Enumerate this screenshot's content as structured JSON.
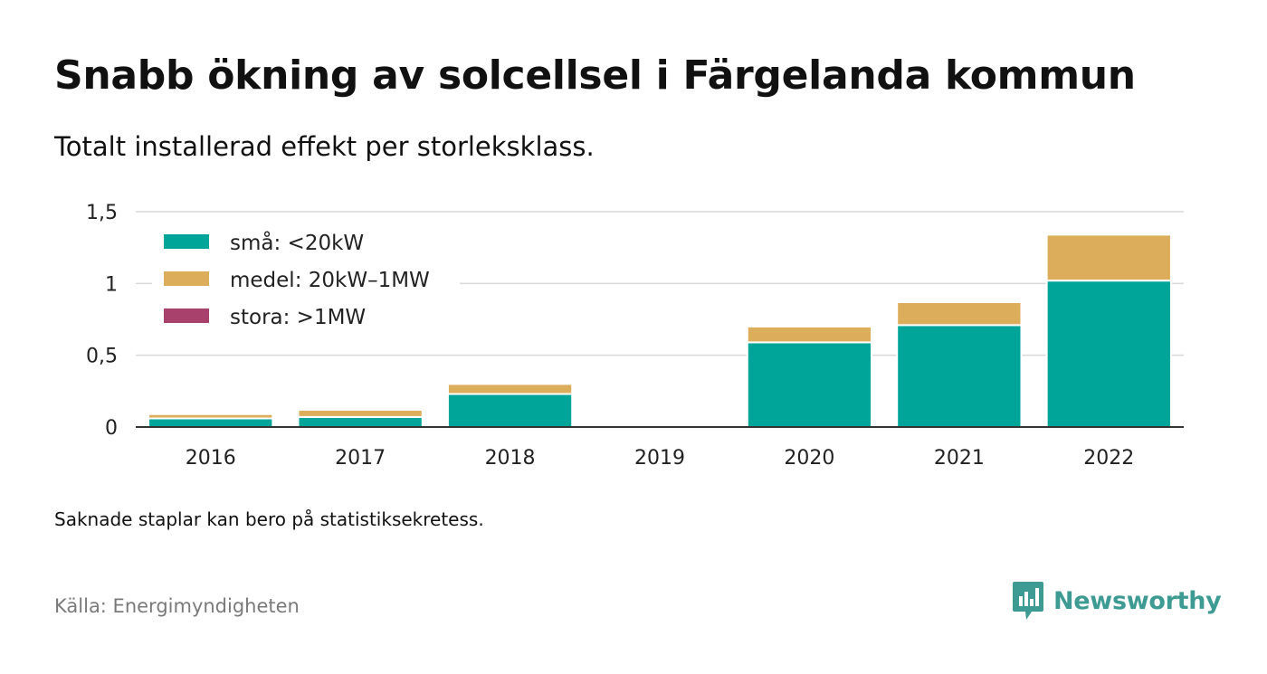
{
  "title": "Snabb ökning av solcellsel i Färgelanda kommun",
  "subtitle": "Totalt installerad effekt per storleksklass.",
  "note": "Saknade staplar kan bero på statistiksekretess.",
  "source": "Källa: Energimyndigheten",
  "brand": {
    "name": "Newsworthy",
    "icon": "newsworthy-logo-icon",
    "color": "#3e9b93"
  },
  "chart_data": {
    "type": "bar",
    "stacked": true,
    "categories": [
      "2016",
      "2017",
      "2018",
      "2019",
      "2020",
      "2021",
      "2022"
    ],
    "series": [
      {
        "name": "små: <20kW",
        "color": "#00a59a",
        "values": [
          0.06,
          0.07,
          0.23,
          null,
          0.59,
          0.71,
          1.02
        ]
      },
      {
        "name": "medel: 20kW–1MW",
        "color": "#dcae5b",
        "values": [
          0.03,
          0.05,
          0.07,
          null,
          0.11,
          0.16,
          0.32
        ]
      },
      {
        "name": "stora: >1MW",
        "color": "#a8416b",
        "values": [
          0,
          0,
          0,
          null,
          0,
          0,
          0
        ]
      }
    ],
    "y_ticks": [
      {
        "value": 0,
        "label": "0"
      },
      {
        "value": 0.5,
        "label": "0,5"
      },
      {
        "value": 1,
        "label": "1"
      },
      {
        "value": 1.5,
        "label": "1,5"
      }
    ],
    "ylim": [
      0,
      1.5
    ],
    "grid": true,
    "legend_position": "top-left"
  }
}
